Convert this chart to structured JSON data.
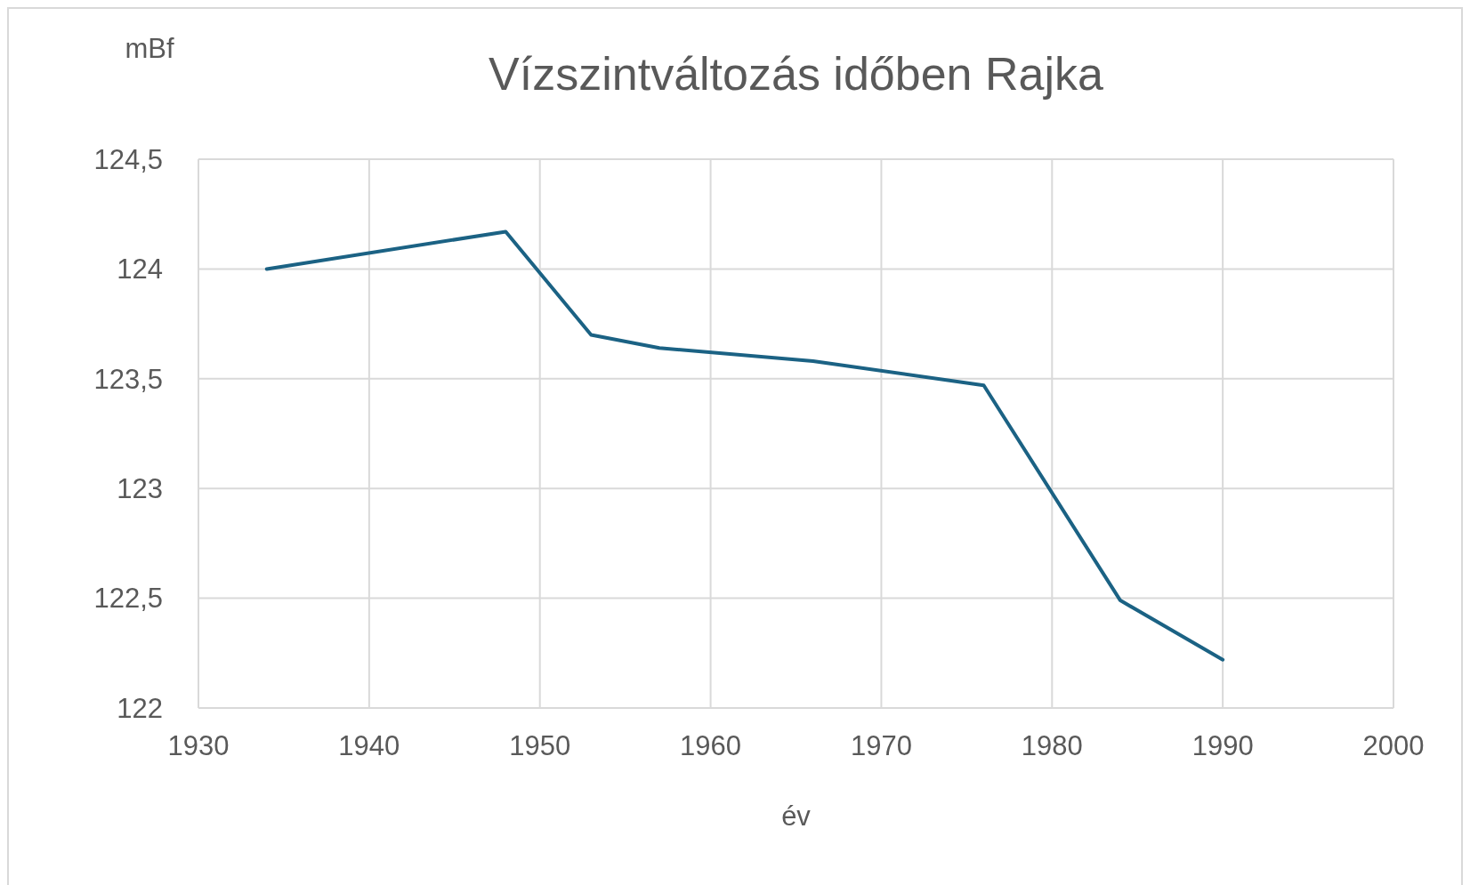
{
  "chart_data": {
    "type": "line",
    "title": "Vízszintváltozás időben Rajka",
    "xlabel": "év",
    "ylabel": "mBf",
    "x": [
      1934,
      1948,
      1953,
      1957,
      1966,
      1976,
      1984,
      1990
    ],
    "series": [
      {
        "color": "#1b6284",
        "values": [
          124.0,
          124.17,
          123.7,
          123.64,
          123.58,
          123.47,
          122.49,
          122.22
        ]
      }
    ],
    "xlim": [
      1930,
      2000
    ],
    "xticks": [
      1930,
      1940,
      1950,
      1960,
      1970,
      1980,
      1990,
      2000
    ],
    "ylim": [
      122,
      124.5
    ],
    "yticks": [
      122,
      {
        "value": 122.5,
        "label": "122,5"
      },
      123,
      {
        "value": 123.5,
        "label": "123,5"
      },
      124,
      {
        "value": 124.5,
        "label": "124,5"
      }
    ],
    "grid": true,
    "marker": "none",
    "line_style": "solid"
  }
}
